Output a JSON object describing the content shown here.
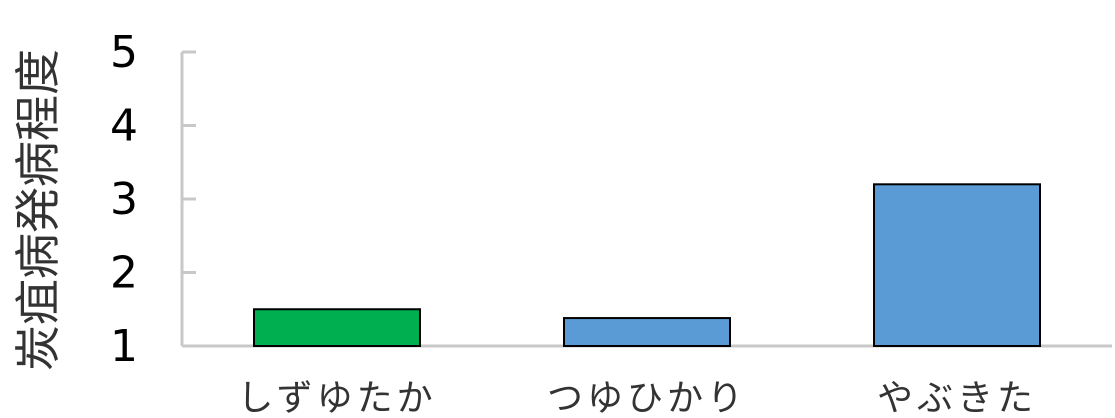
{
  "chart_data": {
    "type": "bar",
    "title": "",
    "xlabel": "",
    "ylabel": "炭疽病発病程度",
    "categories": [
      "しずゆたか",
      "つゆひかり",
      "やぶきた"
    ],
    "values": [
      1.5,
      1.38,
      3.2
    ],
    "bar_colors": [
      "#00b050",
      "#5b9bd5",
      "#5b9bd5"
    ],
    "ylim": [
      1,
      5
    ],
    "yticks": [
      1,
      2,
      3,
      4,
      5
    ],
    "grid": false,
    "legend": "none"
  }
}
